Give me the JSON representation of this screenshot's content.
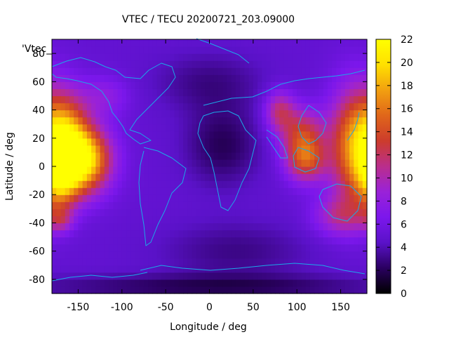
{
  "chart_data": {
    "type": "heatmap",
    "title": "VTEC / TECU 20200721_203.09000",
    "xlabel": "Longitude / deg",
    "ylabel": "Latitude / deg",
    "legend_key": "'Vtec_",
    "xlim": [
      -180,
      180
    ],
    "ylim": [
      -90,
      90
    ],
    "x_ticks": [
      -150,
      -100,
      -50,
      0,
      50,
      100,
      150
    ],
    "y_ticks": [
      -80,
      -60,
      -40,
      -20,
      0,
      20,
      40,
      60,
      80
    ],
    "colorbar": {
      "min": 0,
      "max": 22,
      "ticks": [
        0,
        2,
        4,
        6,
        8,
        10,
        12,
        14,
        16,
        18,
        20,
        22
      ],
      "palette": [
        "#000000",
        "#2a0060",
        "#5a12c8",
        "#7c17ec",
        "#9a22d8",
        "#ba2e8c",
        "#cc3c2c",
        "#e0661a",
        "#f2a010",
        "#ffe000",
        "#ffff00"
      ]
    },
    "grid": false,
    "background_vtec": 5,
    "features": [
      {
        "lon": -145,
        "lat": 5,
        "value": 21,
        "sx": 22,
        "sy": 16
      },
      {
        "lon": -165,
        "lat": 25,
        "value": 15,
        "sx": 18,
        "sy": 20
      },
      {
        "lon": -170,
        "lat": -10,
        "value": 14,
        "sx": 15,
        "sy": 15
      },
      {
        "lon": 165,
        "lat": 15,
        "value": 16,
        "sx": 20,
        "sy": 28
      },
      {
        "lon": 110,
        "lat": 5,
        "value": 14,
        "sx": 16,
        "sy": 11
      },
      {
        "lon": 105,
        "lat": 25,
        "value": 12,
        "sx": 18,
        "sy": 12
      },
      {
        "lon": 150,
        "lat": -35,
        "value": 10,
        "sx": 22,
        "sy": 10
      },
      {
        "lon": -170,
        "lat": -38,
        "value": 9,
        "sx": 10,
        "sy": 6
      },
      {
        "lon": 15,
        "lat": 15,
        "value": 2,
        "sx": 30,
        "sy": 20
      },
      {
        "lon": 0,
        "lat": 60,
        "value": 3,
        "sx": 45,
        "sy": 15
      },
      {
        "lon": 30,
        "lat": -60,
        "value": 3,
        "sx": 60,
        "sy": 15
      },
      {
        "lon": 0,
        "lat": -85,
        "value": 2,
        "sx": 150,
        "sy": 6
      },
      {
        "lon": -120,
        "lat": 50,
        "value": 8,
        "sx": 20,
        "sy": 10
      },
      {
        "lon": 80,
        "lat": 40,
        "value": 11,
        "sx": 12,
        "sy": 10
      }
    ]
  }
}
